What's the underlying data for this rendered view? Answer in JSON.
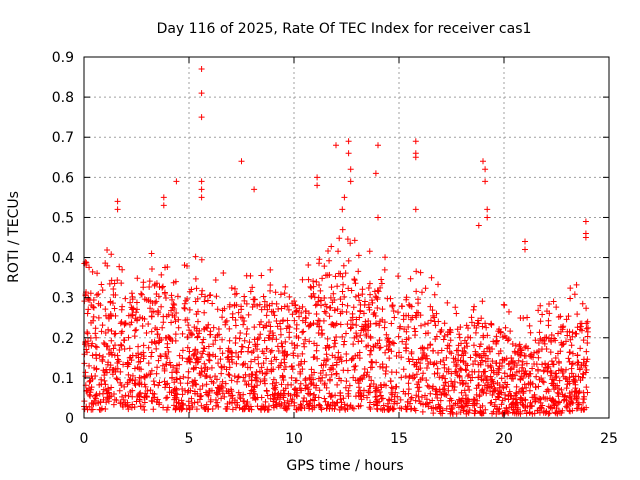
{
  "chart_data": {
    "type": "scatter",
    "title": "Day 116 of 2025, Rate Of TEC Index for receiver cas1",
    "xlabel": "GPS time / hours",
    "ylabel": "ROTI / TECUs",
    "xlim": [
      0,
      25
    ],
    "ylim": [
      0,
      0.9
    ],
    "xticks": [
      "0",
      "5",
      "10",
      "15",
      "20",
      "25"
    ],
    "yticks": [
      "0",
      "0.1",
      "0.2",
      "0.3",
      "0.4",
      "0.5",
      "0.6",
      "0.7",
      "0.8",
      "0.9"
    ],
    "grid": true,
    "marker": "+",
    "color": "#ff0000",
    "x_range_of_data": [
      0,
      24
    ],
    "notable_points": [
      {
        "x": 5.6,
        "y": 0.87
      },
      {
        "x": 5.6,
        "y": 0.81
      },
      {
        "x": 5.6,
        "y": 0.75
      },
      {
        "x": 5.6,
        "y": 0.59
      },
      {
        "x": 5.6,
        "y": 0.57
      },
      {
        "x": 5.6,
        "y": 0.55
      },
      {
        "x": 7.5,
        "y": 0.64
      },
      {
        "x": 8.1,
        "y": 0.57
      },
      {
        "x": 4.4,
        "y": 0.59
      },
      {
        "x": 3.8,
        "y": 0.55
      },
      {
        "x": 3.8,
        "y": 0.53
      },
      {
        "x": 1.6,
        "y": 0.54
      },
      {
        "x": 1.6,
        "y": 0.52
      },
      {
        "x": 12.0,
        "y": 0.68
      },
      {
        "x": 12.6,
        "y": 0.69
      },
      {
        "x": 12.6,
        "y": 0.66
      },
      {
        "x": 12.7,
        "y": 0.62
      },
      {
        "x": 12.7,
        "y": 0.59
      },
      {
        "x": 12.4,
        "y": 0.55
      },
      {
        "x": 12.3,
        "y": 0.52
      },
      {
        "x": 11.1,
        "y": 0.6
      },
      {
        "x": 11.1,
        "y": 0.58
      },
      {
        "x": 14.0,
        "y": 0.68
      },
      {
        "x": 13.9,
        "y": 0.61
      },
      {
        "x": 14.0,
        "y": 0.5
      },
      {
        "x": 15.8,
        "y": 0.69
      },
      {
        "x": 15.8,
        "y": 0.66
      },
      {
        "x": 15.8,
        "y": 0.65
      },
      {
        "x": 15.8,
        "y": 0.52
      },
      {
        "x": 19.0,
        "y": 0.64
      },
      {
        "x": 19.1,
        "y": 0.62
      },
      {
        "x": 19.1,
        "y": 0.59
      },
      {
        "x": 19.2,
        "y": 0.52
      },
      {
        "x": 19.2,
        "y": 0.5
      },
      {
        "x": 18.8,
        "y": 0.48
      },
      {
        "x": 21.0,
        "y": 0.44
      },
      {
        "x": 21.0,
        "y": 0.42
      },
      {
        "x": 23.9,
        "y": 0.49
      },
      {
        "x": 23.9,
        "y": 0.46
      },
      {
        "x": 23.9,
        "y": 0.45
      }
    ],
    "envelope": {
      "description_free": "",
      "hour_centers": [
        0.5,
        1.5,
        2.5,
        3.5,
        4.5,
        5.5,
        6.5,
        7.5,
        8.5,
        9.5,
        10.5,
        11.5,
        12.5,
        13.5,
        14.5,
        15.5,
        16.5,
        17.5,
        18.5,
        19.5,
        20.5,
        21.5,
        22.5,
        23.5
      ],
      "typical_max": [
        0.32,
        0.36,
        0.32,
        0.34,
        0.3,
        0.34,
        0.28,
        0.3,
        0.3,
        0.28,
        0.32,
        0.36,
        0.4,
        0.34,
        0.32,
        0.3,
        0.28,
        0.22,
        0.26,
        0.24,
        0.18,
        0.2,
        0.22,
        0.26
      ],
      "typical_min": [
        0.02,
        0.02,
        0.02,
        0.02,
        0.02,
        0.02,
        0.02,
        0.02,
        0.02,
        0.02,
        0.02,
        0.02,
        0.02,
        0.02,
        0.02,
        0.02,
        0.01,
        0.01,
        0.01,
        0.01,
        0.01,
        0.01,
        0.01,
        0.02
      ]
    }
  }
}
